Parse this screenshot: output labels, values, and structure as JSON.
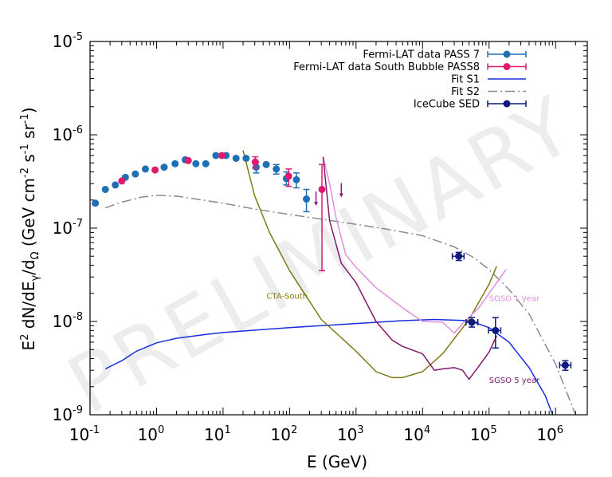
{
  "chart_data": {
    "type": "scatter",
    "xscale": "log",
    "yscale": "log",
    "xlim": [
      0.1,
      3000000
    ],
    "ylim": [
      1e-09,
      1e-05
    ],
    "xlabel": "E (GeV)",
    "ylabel_parts": [
      "E",
      "2",
      " dN/dE",
      "γ",
      "/d",
      "Ω",
      " (GeV cm",
      "-2",
      " s",
      "-1",
      " sr",
      "-1",
      ")"
    ],
    "x_ticks": [
      {
        "base": "10",
        "exp": "-1",
        "value": 0.1
      },
      {
        "base": "10",
        "exp": "0",
        "value": 1
      },
      {
        "base": "10",
        "exp": "1",
        "value": 10
      },
      {
        "base": "10",
        "exp": "2",
        "value": 100
      },
      {
        "base": "10",
        "exp": "3",
        "value": 1000
      },
      {
        "base": "10",
        "exp": "4",
        "value": 10000
      },
      {
        "base": "10",
        "exp": "5",
        "value": 100000
      },
      {
        "base": "10",
        "exp": "6",
        "value": 1000000
      }
    ],
    "y_ticks": [
      {
        "base": "10",
        "exp": "-5",
        "value": 1e-05
      },
      {
        "base": "10",
        "exp": "-6",
        "value": 1e-06
      },
      {
        "base": "10",
        "exp": "-7",
        "value": 1e-07
      },
      {
        "base": "10",
        "exp": "-8",
        "value": 1e-08
      },
      {
        "base": "10",
        "exp": "-9",
        "value": 1e-09
      }
    ],
    "watermark": "PRELIMINARY",
    "series": [
      {
        "name": "Fermi-LAT data PASS 7",
        "kind": "points",
        "color": "#1f6fb4",
        "points": [
          {
            "x": 0.12,
            "y": 1.85e-07
          },
          {
            "x": 0.17,
            "y": 2.6e-07
          },
          {
            "x": 0.24,
            "y": 2.9e-07
          },
          {
            "x": 0.34,
            "y": 3.5e-07
          },
          {
            "x": 0.48,
            "y": 3.8e-07
          },
          {
            "x": 0.68,
            "y": 4.3e-07
          },
          {
            "x": 1.3,
            "y": 4.5e-07
          },
          {
            "x": 1.9,
            "y": 4.9e-07
          },
          {
            "x": 2.7,
            "y": 5.4e-07
          },
          {
            "x": 3.9,
            "y": 4.9e-07
          },
          {
            "x": 5.5,
            "y": 4.9e-07
          },
          {
            "x": 7.8,
            "y": 6e-07
          },
          {
            "x": 11.1,
            "y": 6e-07
          },
          {
            "x": 15.7,
            "y": 5.6e-07
          },
          {
            "x": 22.2,
            "y": 5.6e-07
          },
          {
            "x": 31.5,
            "y": 4.5e-07,
            "ylo": 3.9e-07,
            "yhi": 5.1e-07
          },
          {
            "x": 44.6,
            "y": 4.8e-07
          },
          {
            "x": 63.2,
            "y": 4.3e-07,
            "ylo": 3.8e-07,
            "yhi": 4.8e-07
          },
          {
            "x": 89.5,
            "y": 3.4e-07,
            "ylo": 2.9e-07,
            "yhi": 4e-07
          },
          {
            "x": 126.7,
            "y": 3.3e-07,
            "ylo": 2.7e-07,
            "yhi": 3.9e-07
          },
          {
            "x": 179.4,
            "y": 2.05e-07,
            "ylo": 1.5e-07,
            "yhi": 2.6e-07
          }
        ]
      },
      {
        "name": "Fermi-LAT data South Bubble PASS8",
        "kind": "points",
        "color": "#e01a6e",
        "points": [
          {
            "x": 0.3,
            "y": 3.2e-07
          },
          {
            "x": 0.95,
            "y": 4.2e-07
          },
          {
            "x": 3.0,
            "y": 5.3e-07
          },
          {
            "x": 9.6,
            "y": 6e-07
          },
          {
            "x": 30.5,
            "y": 5.1e-07,
            "ylo": 4.4e-07,
            "yhi": 5.8e-07
          },
          {
            "x": 97,
            "y": 3.6e-07,
            "ylo": 2.8e-07,
            "yhi": 4.3e-07
          },
          {
            "x": 307,
            "y": 2.6e-07,
            "ylo": 3.5e-08,
            "yhi": 4.8e-07
          }
        ]
      },
      {
        "name": "Fermi-LAT upper limits",
        "kind": "upper-limits",
        "color": "#8b1a7a",
        "points": [
          {
            "x": 250,
            "y": 1.95e-07
          },
          {
            "x": 600,
            "y": 2.4e-07
          }
        ]
      },
      {
        "name": "Fit S1",
        "kind": "line",
        "color": "#1a2de0",
        "dash": "",
        "points": [
          {
            "x": 0.17,
            "y": 3.1e-09
          },
          {
            "x": 0.3,
            "y": 3.8e-09
          },
          {
            "x": 0.5,
            "y": 4.8e-09
          },
          {
            "x": 1,
            "y": 5.9e-09
          },
          {
            "x": 2,
            "y": 6.6e-09
          },
          {
            "x": 5,
            "y": 7.2e-09
          },
          {
            "x": 10,
            "y": 7.6e-09
          },
          {
            "x": 50,
            "y": 8.3e-09
          },
          {
            "x": 100,
            "y": 8.6e-09
          },
          {
            "x": 1000,
            "y": 9.5e-09
          },
          {
            "x": 5000,
            "y": 1.02e-08
          },
          {
            "x": 15000,
            "y": 1.05e-08
          },
          {
            "x": 50000,
            "y": 1.02e-08
          },
          {
            "x": 100000,
            "y": 8.6e-09
          },
          {
            "x": 200000,
            "y": 6e-09
          },
          {
            "x": 400000,
            "y": 3.2e-09
          },
          {
            "x": 700000,
            "y": 1.6e-09
          },
          {
            "x": 900000,
            "y": 1e-09
          }
        ]
      },
      {
        "name": "Fit S2",
        "kind": "line",
        "color": "#8a8a8a",
        "dash": "12,4,2,4",
        "points": [
          {
            "x": 0.17,
            "y": 1.65e-07
          },
          {
            "x": 0.3,
            "y": 1.9e-07
          },
          {
            "x": 0.6,
            "y": 2.15e-07
          },
          {
            "x": 1,
            "y": 2.25e-07
          },
          {
            "x": 2,
            "y": 2.2e-07
          },
          {
            "x": 5,
            "y": 2e-07
          },
          {
            "x": 10,
            "y": 1.85e-07
          },
          {
            "x": 30,
            "y": 1.6e-07
          },
          {
            "x": 100,
            "y": 1.4e-07
          },
          {
            "x": 300,
            "y": 1.25e-07
          },
          {
            "x": 1000,
            "y": 1.1e-07
          },
          {
            "x": 3000,
            "y": 9.7e-08
          },
          {
            "x": 10000,
            "y": 8.3e-08
          },
          {
            "x": 30000,
            "y": 6.3e-08
          },
          {
            "x": 60000,
            "y": 4.8e-08
          },
          {
            "x": 100000,
            "y": 3.6e-08
          },
          {
            "x": 200000,
            "y": 2.2e-08
          },
          {
            "x": 400000,
            "y": 1.2e-08
          },
          {
            "x": 1000000,
            "y": 3.5e-09
          },
          {
            "x": 2000000,
            "y": 1e-09
          }
        ]
      },
      {
        "name": "IceCube SED",
        "kind": "points",
        "color": "#0f1a80",
        "points": [
          {
            "x": 35000,
            "y": 5e-08,
            "xlo": 28000,
            "xhi": 42000,
            "ylo": 4.5e-08,
            "yhi": 5.5e-08
          },
          {
            "x": 55000,
            "y": 9.8e-09,
            "xlo": 45000,
            "xhi": 68000,
            "ylo": 8.7e-09,
            "yhi": 1.1e-08
          },
          {
            "x": 125000,
            "y": 8e-09,
            "xlo": 98000,
            "xhi": 150000,
            "ylo": 5.2e-09,
            "yhi": 1.1e-08
          },
          {
            "x": 1400000,
            "y": 3.4e-09,
            "xlo": 1150000,
            "xhi": 1700000,
            "ylo": 3e-09,
            "yhi": 3.8e-09
          }
        ]
      },
      {
        "name": "CTA-South",
        "kind": "sensitivity",
        "color": "#7f7a14",
        "label": "CTA-South",
        "label_at": {
          "x": 45,
          "y": 1.75e-08
        },
        "points": [
          {
            "x": 20,
            "y": 6.8e-07
          },
          {
            "x": 30,
            "y": 2.2e-07
          },
          {
            "x": 50,
            "y": 9e-08
          },
          {
            "x": 100,
            "y": 3.5e-08
          },
          {
            "x": 300,
            "y": 1.05e-08
          },
          {
            "x": 1000,
            "y": 4.8e-09
          },
          {
            "x": 2000,
            "y": 2.9e-09
          },
          {
            "x": 3500,
            "y": 2.5e-09
          },
          {
            "x": 5000,
            "y": 2.5e-09
          },
          {
            "x": 10000,
            "y": 2.9e-09
          },
          {
            "x": 20000,
            "y": 4.5e-09
          },
          {
            "x": 50000,
            "y": 1.05e-08
          },
          {
            "x": 100000,
            "y": 2.5e-08
          },
          {
            "x": 130000,
            "y": 3.9e-08
          }
        ]
      },
      {
        "name": "SGSO 1 year",
        "kind": "sensitivity",
        "color": "#e08fe0",
        "label": "SGSO 1 year",
        "label_at": {
          "x": 100000,
          "y": 1.65e-08
        },
        "points": [
          {
            "x": 320,
            "y": 5.8e-07
          },
          {
            "x": 400,
            "y": 3e-07
          },
          {
            "x": 500,
            "y": 1.3e-07
          },
          {
            "x": 700,
            "y": 5.2e-08
          },
          {
            "x": 1000,
            "y": 3.8e-08
          },
          {
            "x": 2000,
            "y": 2.3e-08
          },
          {
            "x": 5000,
            "y": 1.4e-08
          },
          {
            "x": 10000,
            "y": 1e-08
          },
          {
            "x": 20000,
            "y": 9.8e-09
          },
          {
            "x": 30000,
            "y": 7.5e-09
          },
          {
            "x": 40000,
            "y": 9.5e-09
          },
          {
            "x": 70000,
            "y": 1.4e-08
          },
          {
            "x": 100000,
            "y": 2e-08
          },
          {
            "x": 180000,
            "y": 3.6e-08
          }
        ]
      },
      {
        "name": "SGSO 5 year",
        "kind": "sensitivity",
        "color": "#80186e",
        "label": "SGSO 5 year",
        "label_at": {
          "x": 100000,
          "y": 2.2e-09
        },
        "points": [
          {
            "x": 320,
            "y": 5.8e-07
          },
          {
            "x": 400,
            "y": 1.2e-07
          },
          {
            "x": 600,
            "y": 4.2e-08
          },
          {
            "x": 1000,
            "y": 2.6e-08
          },
          {
            "x": 2000,
            "y": 1e-08
          },
          {
            "x": 3500,
            "y": 6.3e-09
          },
          {
            "x": 5000,
            "y": 5.4e-09
          },
          {
            "x": 10000,
            "y": 4.5e-09
          },
          {
            "x": 15000,
            "y": 3e-09
          },
          {
            "x": 20000,
            "y": 3.1e-09
          },
          {
            "x": 30000,
            "y": 3.2e-09
          },
          {
            "x": 40000,
            "y": 3e-09
          },
          {
            "x": 50000,
            "y": 2.4e-09
          },
          {
            "x": 70000,
            "y": 3.3e-09
          },
          {
            "x": 100000,
            "y": 4.7e-09
          },
          {
            "x": 130000,
            "y": 7e-09
          }
        ]
      }
    ],
    "legend": [
      {
        "label": "Fermi-LAT data PASS 7",
        "kind": "points",
        "color": "#1f6fb4"
      },
      {
        "label": "Fermi-LAT data South Bubble PASS8",
        "kind": "points",
        "color": "#e01a6e"
      },
      {
        "label": "Fit S1",
        "kind": "line",
        "color": "#1a2de0",
        "dash": ""
      },
      {
        "label": "Fit S2",
        "kind": "line",
        "color": "#8a8a8a",
        "dash": "12,4,2,4"
      },
      {
        "label": "IceCube SED",
        "kind": "points",
        "color": "#0f1a80"
      }
    ]
  }
}
